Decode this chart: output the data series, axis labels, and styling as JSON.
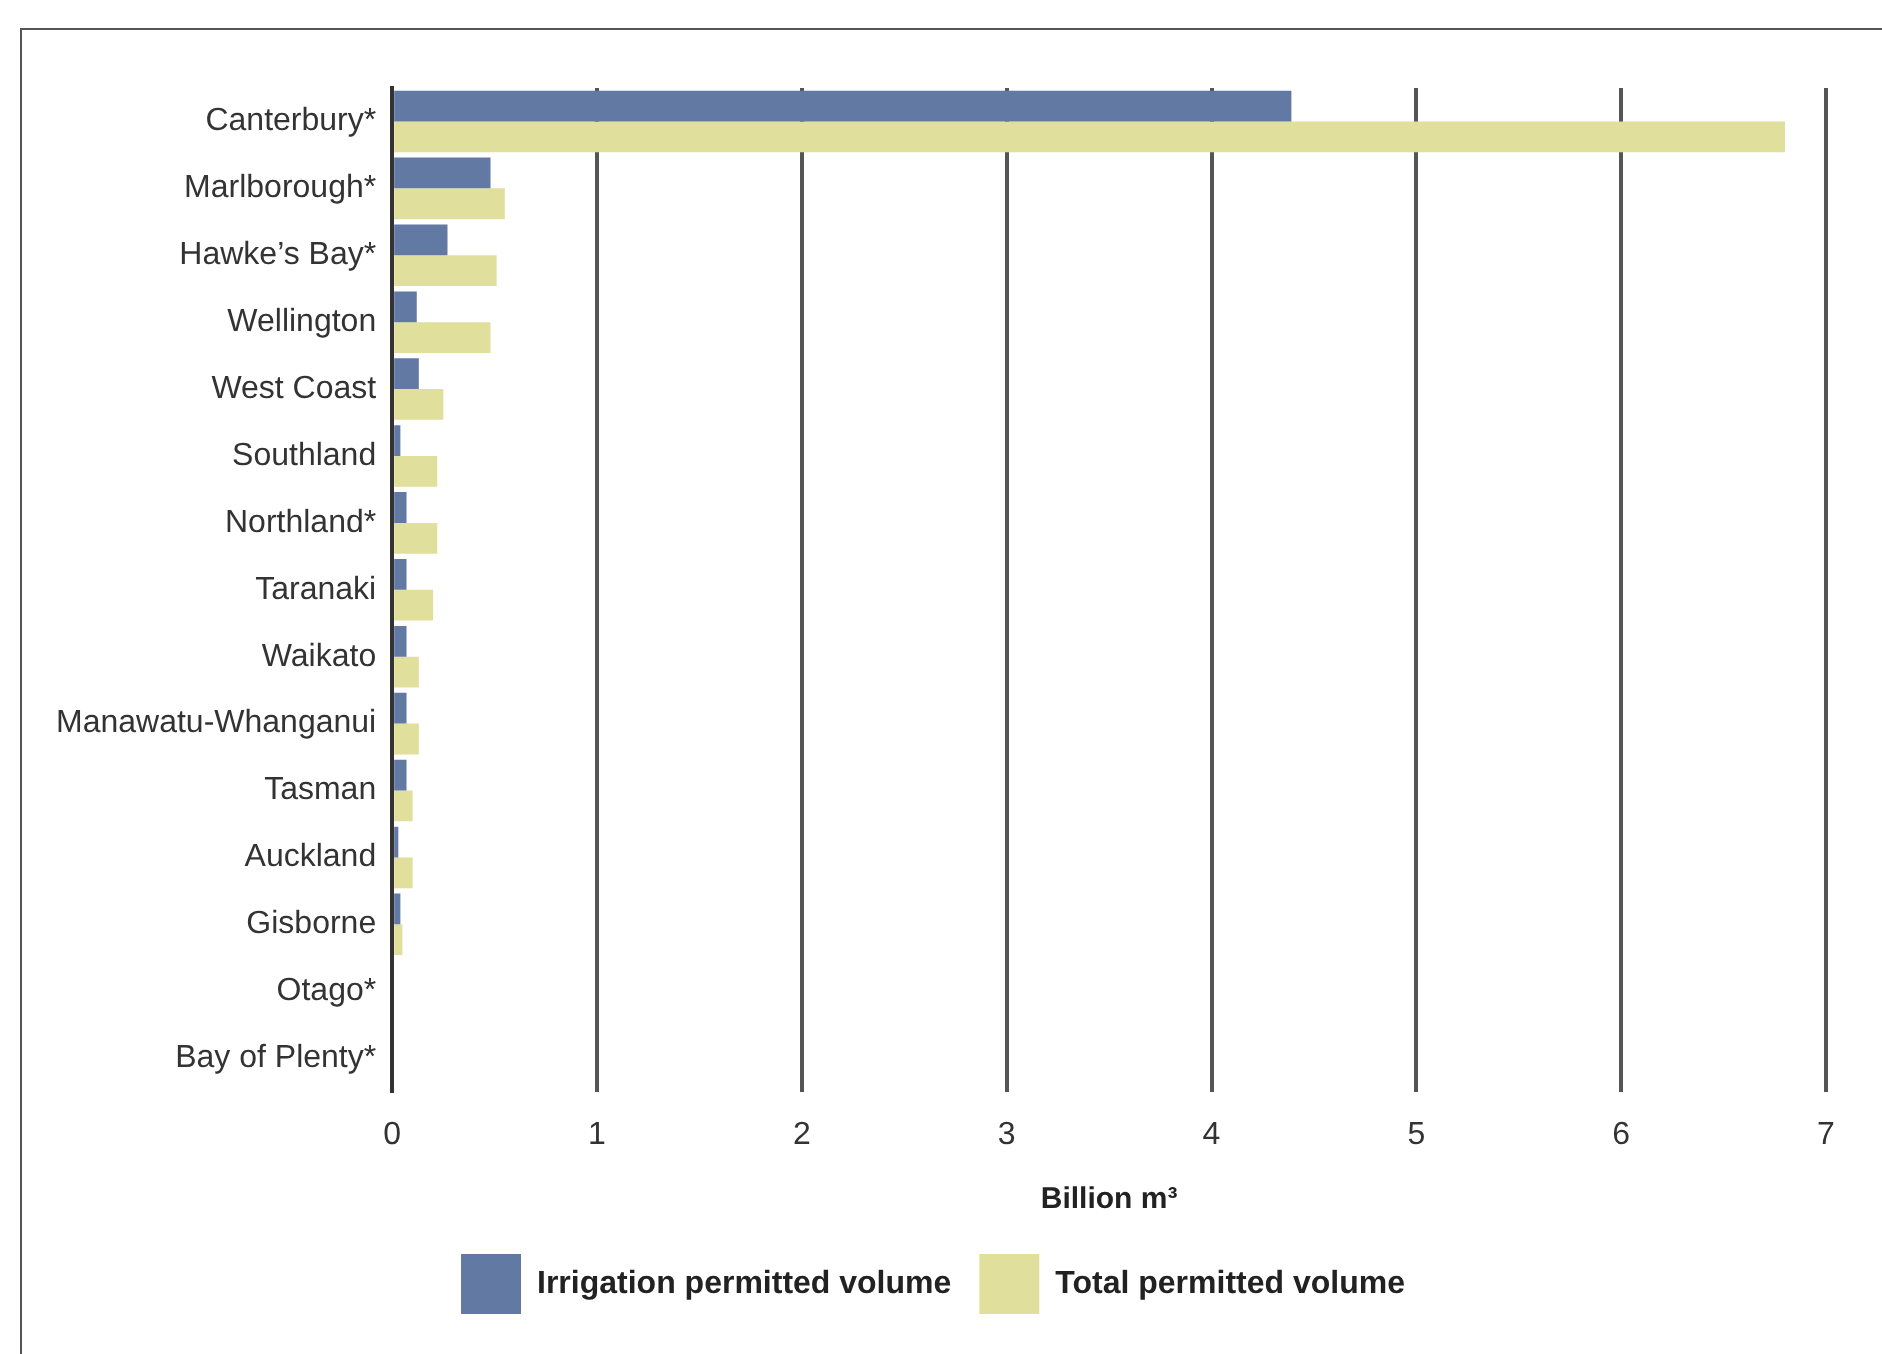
{
  "chart_data": {
    "type": "bar",
    "orientation": "horizontal",
    "xlabel": "Billion m³",
    "categories": [
      "Canterbury*",
      "Marlborough*",
      "Hawke’s Bay*",
      "Wellington",
      "West Coast",
      "Southland",
      "Northland*",
      "Taranaki",
      "Waikato",
      "Manawatu-Whanganui",
      "Tasman",
      "Auckland",
      "Gisborne",
      "Otago*",
      "Bay of Plenty*"
    ],
    "series": [
      {
        "name": "Irrigation permitted volume",
        "color": "#6279a3",
        "values": [
          4.39,
          0.48,
          0.27,
          0.12,
          0.13,
          0.04,
          0.07,
          0.07,
          0.07,
          0.07,
          0.07,
          0.03,
          0.04,
          null,
          null
        ]
      },
      {
        "name": "Total permitted volume",
        "color": "#e0e09c",
        "values": [
          6.8,
          0.55,
          0.51,
          0.48,
          0.25,
          0.22,
          0.22,
          0.2,
          0.13,
          0.13,
          0.1,
          0.1,
          0.05,
          null,
          null
        ]
      }
    ],
    "xlim": [
      0,
      7
    ],
    "xticks": [
      0,
      1,
      2,
      3,
      4,
      5,
      6,
      7
    ],
    "grid": "x",
    "legend": "bottom"
  }
}
